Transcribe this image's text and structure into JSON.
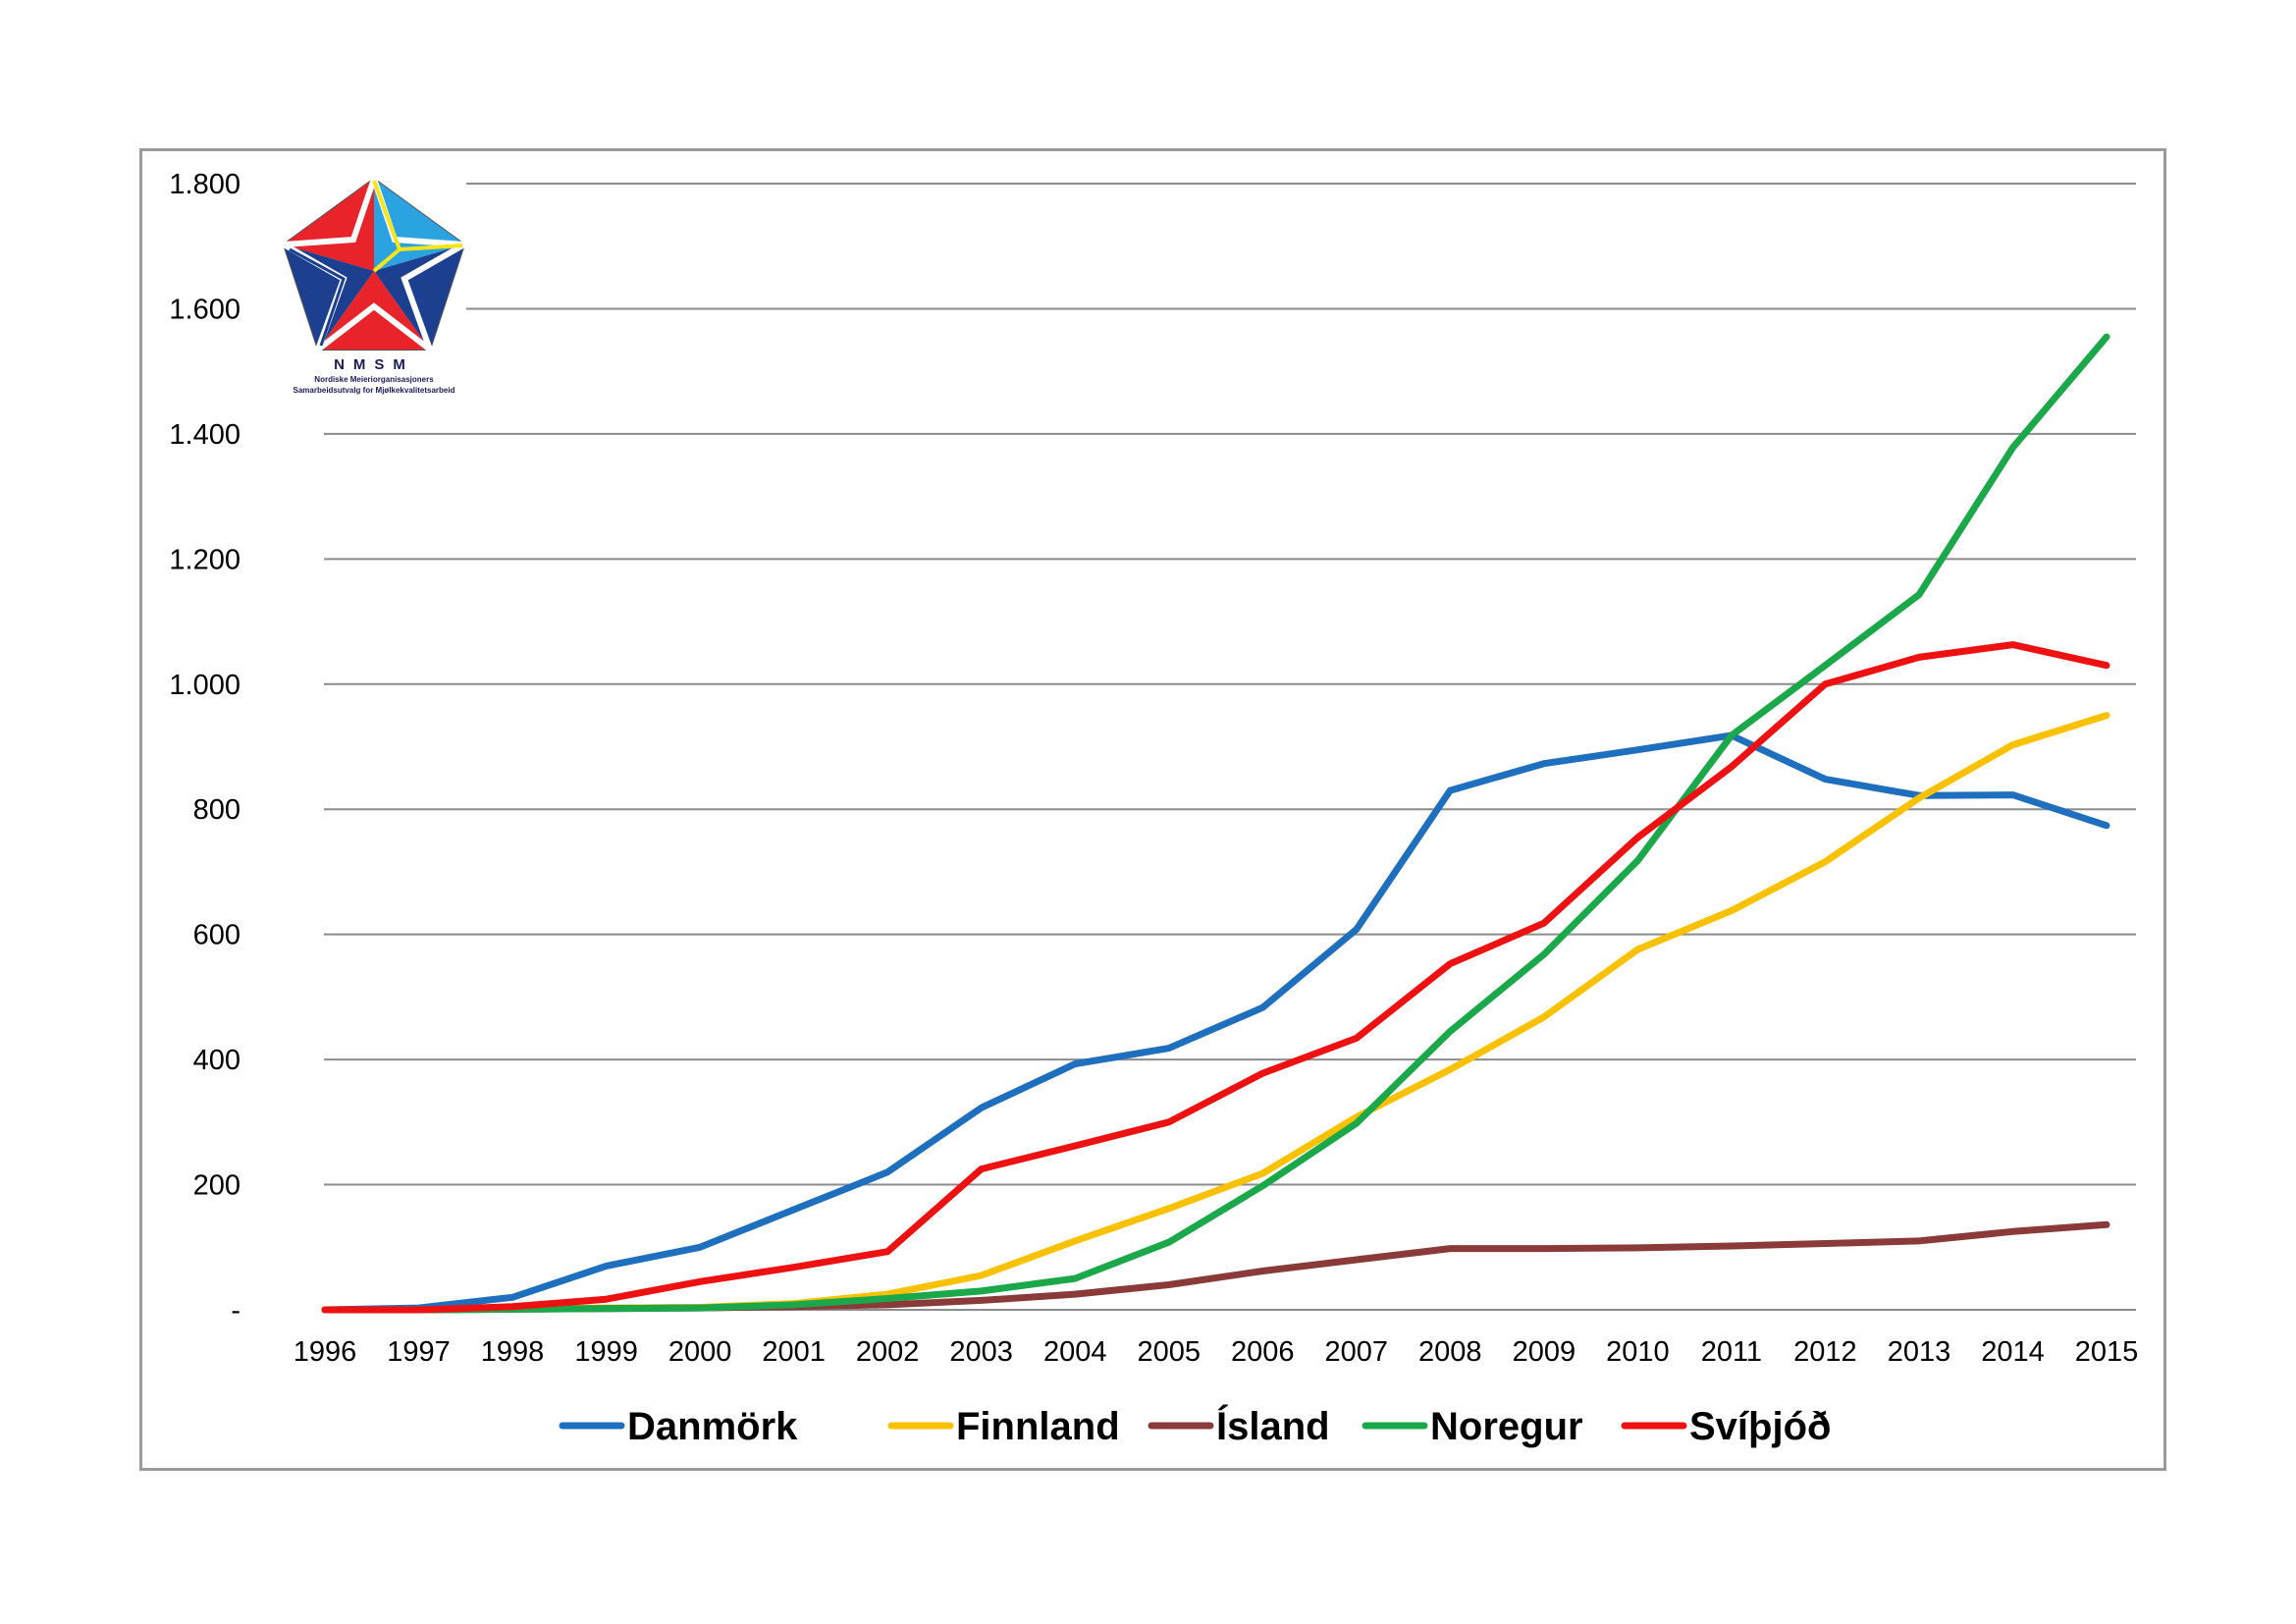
{
  "logo": {
    "acronym": "NMSM",
    "line1": "Nordiske Meieriorganisasjoners",
    "line2": "Samarbeidsutvalg for Mjølkekvalitetsarbeid"
  },
  "chart_data": {
    "type": "line",
    "title": "",
    "xlabel": "",
    "ylabel": "",
    "x": [
      "1996",
      "1997",
      "1998",
      "1999",
      "2000",
      "2001",
      "2002",
      "2003",
      "2004",
      "2005",
      "2006",
      "2007",
      "2008",
      "2009",
      "2010",
      "2011",
      "2012",
      "2013",
      "2014",
      "2015"
    ],
    "ylim": [
      0,
      1800
    ],
    "y_ticks": [
      {
        "value": 0,
        "label": "-"
      },
      {
        "value": 200,
        "label": "200"
      },
      {
        "value": 400,
        "label": "400"
      },
      {
        "value": 600,
        "label": "600"
      },
      {
        "value": 800,
        "label": "800"
      },
      {
        "value": 1000,
        "label": "1.000"
      },
      {
        "value": 1200,
        "label": "1.200"
      },
      {
        "value": 1400,
        "label": "1.400"
      },
      {
        "value": 1600,
        "label": "1.600"
      },
      {
        "value": 1800,
        "label": "1.800"
      }
    ],
    "grid": true,
    "legend_position": "bottom",
    "series": [
      {
        "name": "Danmörk",
        "color": "#1f6fbf",
        "values": [
          0,
          3,
          20,
          70,
          100,
          160,
          220,
          323,
          393,
          418,
          483,
          608,
          830,
          873,
          895,
          918,
          848,
          822,
          823,
          774
        ]
      },
      {
        "name": "Finnland",
        "color": "#f9c100",
        "values": [
          0,
          0,
          2,
          3,
          4,
          10,
          25,
          55,
          110,
          162,
          218,
          308,
          384,
          468,
          576,
          638,
          716,
          818,
          903,
          950
        ]
      },
      {
        "name": "Ísland",
        "color": "#8b3a3a",
        "values": [
          0,
          0,
          1,
          2,
          3,
          5,
          8,
          15,
          25,
          40,
          62,
          80,
          98,
          98,
          99,
          102,
          106,
          110,
          125,
          136
        ]
      },
      {
        "name": "Noregur",
        "color": "#1ba84a",
        "values": [
          0,
          0,
          1,
          2,
          3,
          8,
          18,
          30,
          50,
          108,
          198,
          298,
          445,
          568,
          718,
          918,
          1030,
          1143,
          1378,
          1555
        ]
      },
      {
        "name": "Svíþjóð",
        "color": "#ee1111",
        "values": [
          0,
          0,
          5,
          17,
          45,
          68,
          93,
          225,
          262,
          300,
          378,
          434,
          553,
          618,
          755,
          868,
          1000,
          1043,
          1063,
          1030
        ]
      }
    ]
  }
}
